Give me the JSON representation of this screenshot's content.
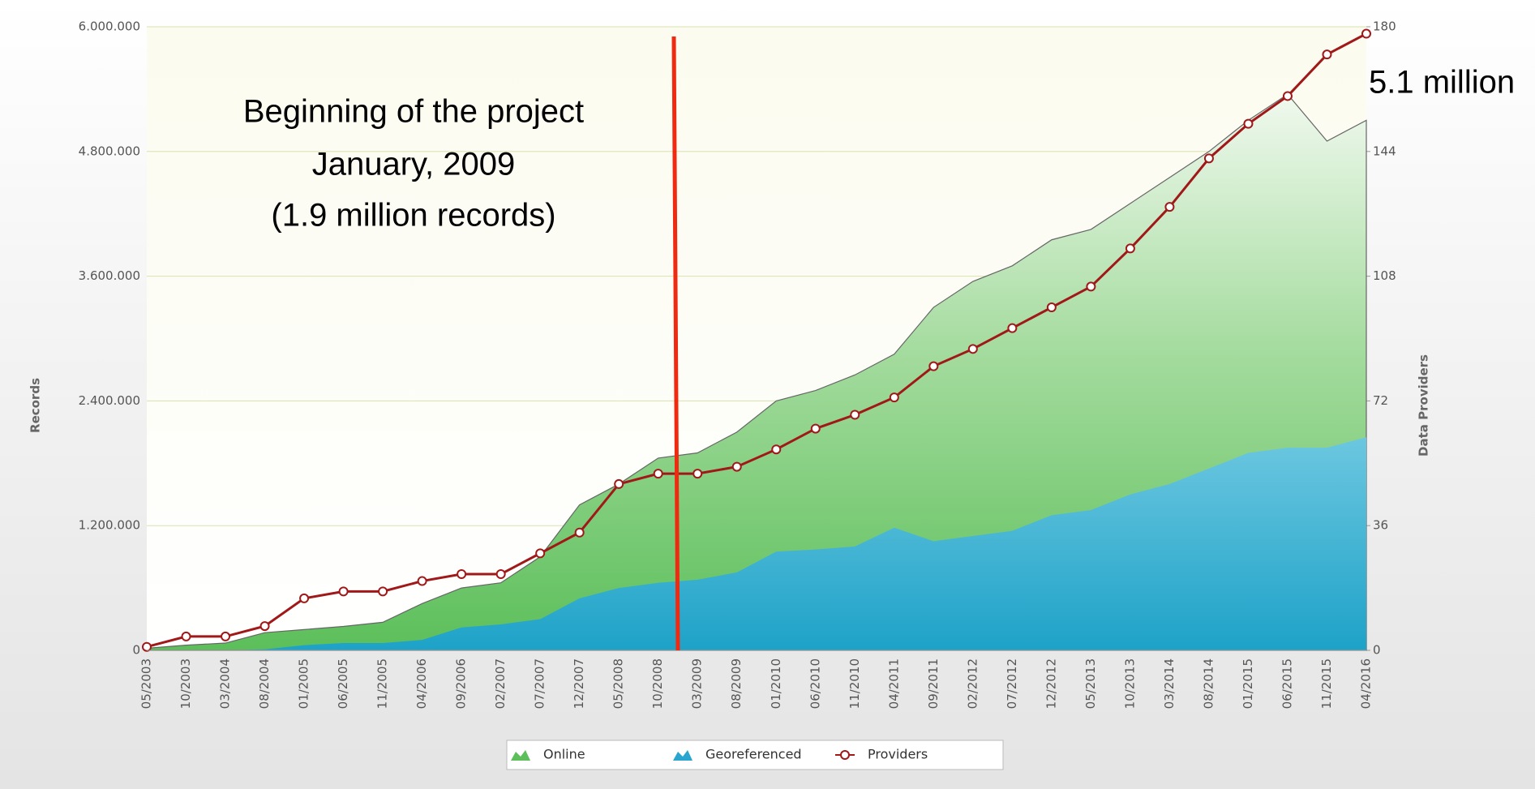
{
  "chart_data": {
    "type": "area",
    "categories": [
      "05/2003",
      "10/2003",
      "03/2004",
      "08/2004",
      "01/2005",
      "06/2005",
      "11/2005",
      "04/2006",
      "09/2006",
      "02/2007",
      "07/2007",
      "12/2007",
      "05/2008",
      "10/2008",
      "03/2009",
      "08/2009",
      "01/2010",
      "06/2010",
      "11/2010",
      "04/2011",
      "09/2011",
      "02/2012",
      "07/2012",
      "12/2012",
      "05/2013",
      "10/2013",
      "03/2014",
      "08/2014",
      "01/2015",
      "06/2015",
      "11/2015",
      "04/2016"
    ],
    "series": [
      {
        "name": "Online",
        "color": "#5cbf5a",
        "values": [
          20000,
          50000,
          70000,
          170000,
          200000,
          230000,
          270000,
          450000,
          600000,
          650000,
          900000,
          1400000,
          1600000,
          1850000,
          1900000,
          2100000,
          2400000,
          2500000,
          2650000,
          2850000,
          3300000,
          3550000,
          3700000,
          3950000,
          4050000,
          4300000,
          4550000,
          4800000,
          5100000,
          5350000,
          4900000,
          5100000
        ]
      },
      {
        "name": "Georeferenced",
        "color": "#2aa5cf",
        "values": [
          0,
          0,
          0,
          10000,
          50000,
          70000,
          70000,
          100000,
          220000,
          250000,
          300000,
          500000,
          600000,
          650000,
          680000,
          750000,
          950000,
          970000,
          1000000,
          1180000,
          1050000,
          1100000,
          1150000,
          1300000,
          1350000,
          1500000,
          1600000,
          1750000,
          1900000,
          1950000,
          1950000,
          2050000
        ]
      },
      {
        "name": "Providers",
        "color": "#a01818",
        "axis": "y2",
        "values": [
          1,
          4,
          4,
          7,
          15,
          17,
          17,
          20,
          22,
          22,
          28,
          34,
          48,
          51,
          51,
          53,
          58,
          64,
          68,
          73,
          82,
          87,
          93,
          99,
          105,
          116,
          128,
          142,
          152,
          160,
          172,
          178
        ]
      }
    ],
    "ylabel": "Records",
    "y2label": "Data Providers",
    "ylim": [
      0,
      6000000
    ],
    "yticks": [
      {
        "value": 0,
        "label": "0"
      },
      {
        "value": 1200000,
        "label": "1.200.000"
      },
      {
        "value": 2400000,
        "label": "2.400.000"
      },
      {
        "value": 3600000,
        "label": "3.600.000"
      },
      {
        "value": 4800000,
        "label": "4.800.000"
      },
      {
        "value": 6000000,
        "label": "6.000.000"
      }
    ],
    "y2lim": [
      0,
      180
    ],
    "y2ticks": [
      0,
      36,
      72,
      108,
      144,
      180
    ],
    "grid": true,
    "legend": "bottom",
    "annotations": [
      "Beginning of the project",
      "January, 2009",
      "(1.9 million records)",
      "5.1 million"
    ]
  }
}
